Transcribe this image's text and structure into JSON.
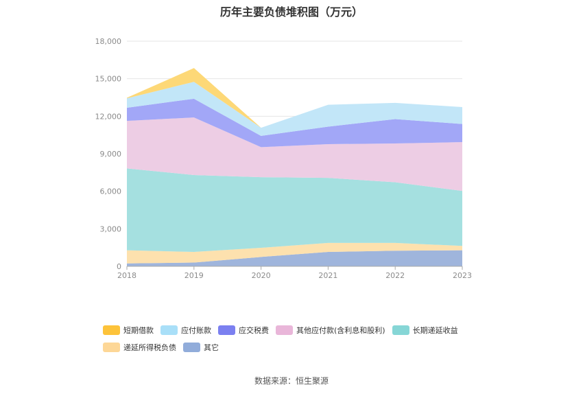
{
  "chart_data": {
    "type": "area",
    "stacked": true,
    "title": "历年主要负债堆积图（万元）",
    "x": [
      "2018",
      "2019",
      "2020",
      "2021",
      "2022",
      "2023"
    ],
    "ylim": [
      0,
      18000
    ],
    "yticks": [
      "0",
      "3,000",
      "6,000",
      "9,000",
      "12,000",
      "15,000",
      "18,000"
    ],
    "grid": true,
    "legend_position": "bottom",
    "series": [
      {
        "name": "其它",
        "color": "#9fb5dc",
        "values": [
          230,
          300,
          750,
          1150,
          1250,
          1280
        ]
      },
      {
        "name": "递延所得税负债",
        "color": "#fde1ae",
        "values": [
          1050,
          850,
          730,
          720,
          620,
          350
        ]
      },
      {
        "name": "长期递延收益",
        "color": "#a5e0e0",
        "values": [
          6550,
          6150,
          5650,
          5200,
          4850,
          4400
        ]
      },
      {
        "name": "其他应付款(含利息和股利)",
        "color": "#edcde4",
        "values": [
          3800,
          4600,
          2400,
          2700,
          3100,
          3900
        ]
      },
      {
        "name": "应交税费",
        "color": "#a2a7f7",
        "values": [
          1050,
          1500,
          900,
          1400,
          1950,
          1450
        ]
      },
      {
        "name": "应付账款",
        "color": "#c2e6f8",
        "values": [
          750,
          1350,
          650,
          1750,
          1300,
          1350
        ]
      },
      {
        "name": "短期借款",
        "color": "#fdd877",
        "values": [
          50,
          1100,
          0,
          0,
          0,
          0
        ]
      }
    ]
  },
  "legend": {
    "row1": [
      "短期借款",
      "应付账款",
      "应交税费",
      "其他应付款(含利息和股利)",
      "长期递延收益"
    ],
    "row2": [
      "递延所得税负债",
      "其它"
    ],
    "swatch_colors": {
      "短期借款": "#fdc33a",
      "应付账款": "#a9dff8",
      "应交税费": "#7b80f0",
      "其他应付款(含利息和股利)": "#e9b6d9",
      "长期递延收益": "#86d6d6",
      "递延所得税负债": "#fdd797",
      "其它": "#91acda"
    }
  },
  "source": "数据来源：恒生聚源"
}
